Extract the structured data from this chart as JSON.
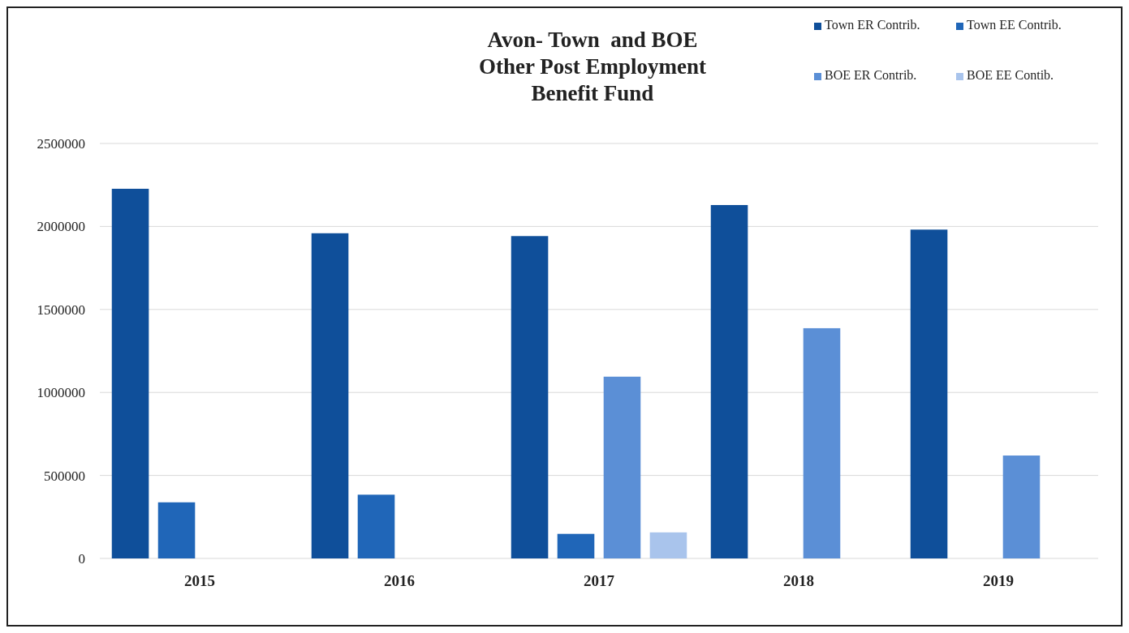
{
  "chart_data": {
    "type": "bar",
    "title": "Avon- Town  and BOE\nOther Post Employment\nBenefit Fund",
    "categories": [
      "2015",
      "2016",
      "2017",
      "2018",
      "2019"
    ],
    "series": [
      {
        "name": "Town ER Contrib.",
        "color": "#0f4f9a",
        "values": [
          2227000,
          1959000,
          1942000,
          2129000,
          1981000
        ]
      },
      {
        "name": "Town EE Contrib.",
        "color": "#2066b8",
        "values": [
          338000,
          384000,
          148000,
          null,
          null
        ]
      },
      {
        "name": "BOE ER Contrib.",
        "color": "#5b8fd6",
        "values": [
          null,
          null,
          1095000,
          1387000,
          620000
        ]
      },
      {
        "name": "BOE EE Contib.",
        "color": "#a9c4ec",
        "values": [
          null,
          null,
          157000,
          null,
          null
        ]
      }
    ],
    "ylim": [
      0,
      2500000
    ],
    "yticks": [
      0,
      500000,
      1000000,
      1500000,
      2000000,
      2500000
    ],
    "grid": "y",
    "legend": "top right"
  }
}
